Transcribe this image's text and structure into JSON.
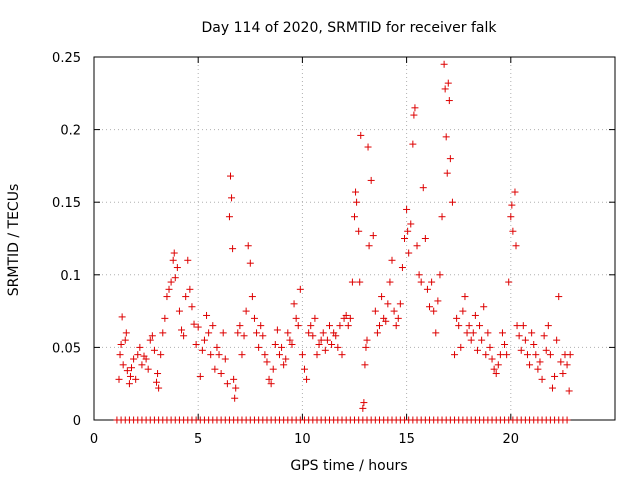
{
  "chart_data": {
    "type": "scatter",
    "title": "Day 114 of 2020, SRMTID for receiver falk",
    "xlabel": "GPS time / hours",
    "ylabel": "SRMTID / TECUs",
    "xlim": [
      0,
      25
    ],
    "ylim": [
      0,
      0.25
    ],
    "xticks": [
      0,
      5,
      10,
      15,
      20
    ],
    "xtick_labels": [
      "0",
      "5",
      "10",
      "15",
      "20"
    ],
    "yticks": [
      0,
      0.05,
      0.1,
      0.15,
      0.2,
      0.25
    ],
    "ytick_labels": [
      "0",
      "0.05",
      "0.1",
      "0.15",
      "0.2",
      "0.25"
    ],
    "grid": true,
    "legend": "none",
    "marker": "plus",
    "color": "#dd0000",
    "series": [
      {
        "name": "SRMTID",
        "points": [
          [
            1.2,
            0.028
          ],
          [
            1.25,
            0.045
          ],
          [
            1.3,
            0.052
          ],
          [
            1.35,
            0.071
          ],
          [
            1.4,
            0.038
          ],
          [
            1.5,
            0.055
          ],
          [
            1.55,
            0.06
          ],
          [
            1.6,
            0.034
          ],
          [
            1.7,
            0.025
          ],
          [
            1.75,
            0.03
          ],
          [
            1.8,
            0.036
          ],
          [
            1.9,
            0.042
          ],
          [
            2.0,
            0.028
          ],
          [
            2.1,
            0.045
          ],
          [
            2.2,
            0.05
          ],
          [
            2.3,
            0.038
          ],
          [
            2.4,
            0.044
          ],
          [
            2.5,
            0.042
          ],
          [
            2.6,
            0.035
          ],
          [
            2.7,
            0.055
          ],
          [
            2.8,
            0.058
          ],
          [
            2.9,
            0.048
          ],
          [
            3.0,
            0.026
          ],
          [
            3.05,
            0.032
          ],
          [
            3.1,
            0.022
          ],
          [
            3.2,
            0.045
          ],
          [
            3.3,
            0.06
          ],
          [
            3.4,
            0.07
          ],
          [
            3.5,
            0.085
          ],
          [
            3.6,
            0.09
          ],
          [
            3.7,
            0.095
          ],
          [
            3.8,
            0.11
          ],
          [
            3.85,
            0.115
          ],
          [
            3.9,
            0.098
          ],
          [
            4.0,
            0.105
          ],
          [
            4.1,
            0.075
          ],
          [
            4.2,
            0.062
          ],
          [
            4.3,
            0.058
          ],
          [
            4.4,
            0.085
          ],
          [
            4.5,
            0.11
          ],
          [
            4.6,
            0.09
          ],
          [
            4.7,
            0.078
          ],
          [
            4.8,
            0.066
          ],
          [
            4.9,
            0.052
          ],
          [
            5.0,
            0.064
          ],
          [
            5.1,
            0.03
          ],
          [
            5.2,
            0.048
          ],
          [
            5.3,
            0.055
          ],
          [
            5.4,
            0.072
          ],
          [
            5.5,
            0.06
          ],
          [
            5.6,
            0.045
          ],
          [
            5.7,
            0.065
          ],
          [
            5.8,
            0.035
          ],
          [
            5.9,
            0.05
          ],
          [
            6.0,
            0.045
          ],
          [
            6.1,
            0.032
          ],
          [
            6.2,
            0.06
          ],
          [
            6.3,
            0.042
          ],
          [
            6.4,
            0.025
          ],
          [
            6.5,
            0.14
          ],
          [
            6.55,
            0.168
          ],
          [
            6.6,
            0.153
          ],
          [
            6.65,
            0.118
          ],
          [
            6.7,
            0.028
          ],
          [
            6.75,
            0.015
          ],
          [
            6.8,
            0.022
          ],
          [
            6.9,
            0.06
          ],
          [
            7.0,
            0.065
          ],
          [
            7.1,
            0.045
          ],
          [
            7.2,
            0.058
          ],
          [
            7.3,
            0.075
          ],
          [
            7.4,
            0.12
          ],
          [
            7.5,
            0.108
          ],
          [
            7.6,
            0.085
          ],
          [
            7.7,
            0.07
          ],
          [
            7.8,
            0.06
          ],
          [
            7.9,
            0.05
          ],
          [
            8.0,
            0.065
          ],
          [
            8.1,
            0.058
          ],
          [
            8.2,
            0.045
          ],
          [
            8.3,
            0.04
          ],
          [
            8.4,
            0.028
          ],
          [
            8.5,
            0.025
          ],
          [
            8.6,
            0.035
          ],
          [
            8.7,
            0.052
          ],
          [
            8.8,
            0.062
          ],
          [
            8.9,
            0.045
          ],
          [
            9.0,
            0.05
          ],
          [
            9.1,
            0.038
          ],
          [
            9.2,
            0.042
          ],
          [
            9.3,
            0.06
          ],
          [
            9.4,
            0.055
          ],
          [
            9.5,
            0.052
          ],
          [
            9.6,
            0.08
          ],
          [
            9.7,
            0.07
          ],
          [
            9.8,
            0.065
          ],
          [
            9.9,
            0.09
          ],
          [
            10.0,
            0.045
          ],
          [
            10.1,
            0.035
          ],
          [
            10.2,
            0.028
          ],
          [
            10.3,
            0.06
          ],
          [
            10.4,
            0.065
          ],
          [
            10.5,
            0.058
          ],
          [
            10.6,
            0.07
          ],
          [
            10.7,
            0.045
          ],
          [
            10.8,
            0.052
          ],
          [
            10.9,
            0.055
          ],
          [
            11.0,
            0.06
          ],
          [
            11.1,
            0.048
          ],
          [
            11.2,
            0.055
          ],
          [
            11.3,
            0.065
          ],
          [
            11.4,
            0.052
          ],
          [
            11.5,
            0.06
          ],
          [
            11.6,
            0.058
          ],
          [
            11.7,
            0.05
          ],
          [
            11.8,
            0.065
          ],
          [
            11.9,
            0.045
          ],
          [
            12.0,
            0.07
          ],
          [
            12.1,
            0.072
          ],
          [
            12.2,
            0.065
          ],
          [
            12.3,
            0.07
          ],
          [
            12.4,
            0.095
          ],
          [
            12.5,
            0.14
          ],
          [
            12.55,
            0.157
          ],
          [
            12.6,
            0.15
          ],
          [
            12.7,
            0.13
          ],
          [
            12.75,
            0.095
          ],
          [
            12.8,
            0.196
          ],
          [
            12.9,
            0.008
          ],
          [
            12.95,
            0.012
          ],
          [
            13.0,
            0.038
          ],
          [
            13.05,
            0.05
          ],
          [
            13.1,
            0.055
          ],
          [
            13.15,
            0.188
          ],
          [
            13.2,
            0.12
          ],
          [
            13.3,
            0.165
          ],
          [
            13.4,
            0.127
          ],
          [
            13.5,
            0.075
          ],
          [
            13.6,
            0.06
          ],
          [
            13.7,
            0.065
          ],
          [
            13.8,
            0.085
          ],
          [
            13.9,
            0.07
          ],
          [
            14.0,
            0.068
          ],
          [
            14.1,
            0.08
          ],
          [
            14.2,
            0.095
          ],
          [
            14.3,
            0.11
          ],
          [
            14.4,
            0.075
          ],
          [
            14.5,
            0.065
          ],
          [
            14.6,
            0.07
          ],
          [
            14.7,
            0.08
          ],
          [
            14.8,
            0.105
          ],
          [
            14.9,
            0.125
          ],
          [
            15.0,
            0.145
          ],
          [
            15.05,
            0.13
          ],
          [
            15.1,
            0.115
          ],
          [
            15.2,
            0.135
          ],
          [
            15.3,
            0.19
          ],
          [
            15.35,
            0.21
          ],
          [
            15.4,
            0.215
          ],
          [
            15.5,
            0.12
          ],
          [
            15.6,
            0.1
          ],
          [
            15.7,
            0.095
          ],
          [
            15.8,
            0.16
          ],
          [
            15.9,
            0.125
          ],
          [
            16.0,
            0.09
          ],
          [
            16.1,
            0.078
          ],
          [
            16.2,
            0.095
          ],
          [
            16.3,
            0.075
          ],
          [
            16.4,
            0.06
          ],
          [
            16.5,
            0.082
          ],
          [
            16.6,
            0.1
          ],
          [
            16.7,
            0.14
          ],
          [
            16.8,
            0.245
          ],
          [
            16.85,
            0.228
          ],
          [
            16.9,
            0.195
          ],
          [
            16.95,
            0.17
          ],
          [
            17.0,
            0.232
          ],
          [
            17.05,
            0.22
          ],
          [
            17.1,
            0.18
          ],
          [
            17.2,
            0.15
          ],
          [
            17.3,
            0.045
          ],
          [
            17.4,
            0.07
          ],
          [
            17.5,
            0.065
          ],
          [
            17.6,
            0.05
          ],
          [
            17.7,
            0.075
          ],
          [
            17.8,
            0.085
          ],
          [
            17.9,
            0.06
          ],
          [
            18.0,
            0.065
          ],
          [
            18.1,
            0.055
          ],
          [
            18.2,
            0.06
          ],
          [
            18.3,
            0.072
          ],
          [
            18.4,
            0.048
          ],
          [
            18.5,
            0.065
          ],
          [
            18.6,
            0.055
          ],
          [
            18.7,
            0.078
          ],
          [
            18.8,
            0.045
          ],
          [
            18.9,
            0.06
          ],
          [
            19.0,
            0.05
          ],
          [
            19.1,
            0.042
          ],
          [
            19.2,
            0.035
          ],
          [
            19.3,
            0.032
          ],
          [
            19.4,
            0.038
          ],
          [
            19.5,
            0.045
          ],
          [
            19.6,
            0.06
          ],
          [
            19.7,
            0.052
          ],
          [
            19.8,
            0.045
          ],
          [
            19.9,
            0.095
          ],
          [
            20.0,
            0.14
          ],
          [
            20.05,
            0.148
          ],
          [
            20.1,
            0.13
          ],
          [
            20.2,
            0.157
          ],
          [
            20.25,
            0.12
          ],
          [
            20.3,
            0.065
          ],
          [
            20.4,
            0.058
          ],
          [
            20.5,
            0.048
          ],
          [
            20.6,
            0.065
          ],
          [
            20.7,
            0.055
          ],
          [
            20.8,
            0.045
          ],
          [
            20.9,
            0.038
          ],
          [
            21.0,
            0.06
          ],
          [
            21.1,
            0.052
          ],
          [
            21.2,
            0.045
          ],
          [
            21.3,
            0.035
          ],
          [
            21.4,
            0.04
          ],
          [
            21.5,
            0.028
          ],
          [
            21.6,
            0.058
          ],
          [
            21.7,
            0.048
          ],
          [
            21.8,
            0.065
          ],
          [
            21.9,
            0.045
          ],
          [
            22.0,
            0.022
          ],
          [
            22.1,
            0.03
          ],
          [
            22.2,
            0.055
          ],
          [
            22.3,
            0.085
          ],
          [
            22.4,
            0.04
          ],
          [
            22.5,
            0.032
          ],
          [
            22.6,
            0.045
          ],
          [
            22.7,
            0.038
          ],
          [
            22.8,
            0.02
          ],
          [
            22.85,
            0.045
          ]
        ],
        "zero_x": [
          1.1,
          1.3,
          1.5,
          1.7,
          1.9,
          2.1,
          2.3,
          2.5,
          2.7,
          2.9,
          3.1,
          3.3,
          3.5,
          3.7,
          3.9,
          4.1,
          4.3,
          4.5,
          4.7,
          4.9,
          5.1,
          5.3,
          5.5,
          5.7,
          5.9,
          6.1,
          6.3,
          6.5,
          6.7,
          6.9,
          7.1,
          7.3,
          7.5,
          7.7,
          7.9,
          8.1,
          8.3,
          8.5,
          8.7,
          8.9,
          9.1,
          9.3,
          9.5,
          9.7,
          9.9,
          10.1,
          10.3,
          10.5,
          10.7,
          10.9,
          11.1,
          11.3,
          11.5,
          11.7,
          11.9,
          12.1,
          12.3,
          12.5,
          12.7,
          12.9,
          13.1,
          13.3,
          13.5,
          13.7,
          13.9,
          14.1,
          14.3,
          14.5,
          14.7,
          14.9,
          15.1,
          15.3,
          15.5,
          15.7,
          15.9,
          16.1,
          16.3,
          16.5,
          16.7,
          16.9,
          17.1,
          17.3,
          17.5,
          17.7,
          17.9,
          18.1,
          18.3,
          18.5,
          18.7,
          18.9,
          19.1,
          19.3,
          19.5,
          19.7,
          19.9,
          20.1,
          20.3,
          20.5,
          20.7,
          20.9,
          21.1,
          21.3,
          21.5,
          21.7,
          21.9,
          22.1,
          22.3,
          22.5,
          22.7
        ]
      }
    ]
  }
}
